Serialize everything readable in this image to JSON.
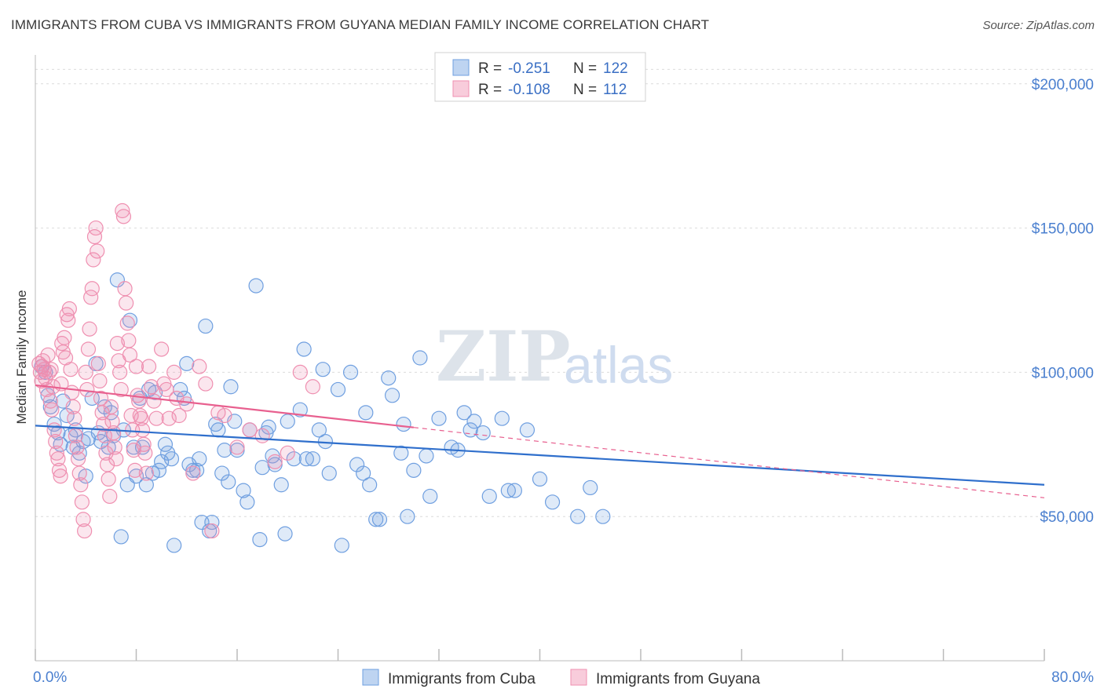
{
  "title": "IMMIGRANTS FROM CUBA VS IMMIGRANTS FROM GUYANA MEDIAN FAMILY INCOME CORRELATION CHART",
  "source": "Source: ZipAtlas.com",
  "watermark": {
    "zip": "ZIP",
    "atlas": "atlas"
  },
  "chart_data": {
    "type": "scatter",
    "ylabel": "Median Family Income",
    "xlim": [
      0,
      80
    ],
    "ylim": [
      0,
      210000
    ],
    "x_tick_labels": [
      "0.0%",
      "80.0%"
    ],
    "x_tick_marks": [
      0,
      8,
      16,
      24,
      32,
      40,
      48,
      56,
      64,
      72,
      80
    ],
    "y_ticks": [
      {
        "value": 50000,
        "label": "$50,000"
      },
      {
        "value": 100000,
        "label": "$100,000"
      },
      {
        "value": 150000,
        "label": "$150,000"
      },
      {
        "value": 200000,
        "label": "$200,000"
      }
    ],
    "series": [
      {
        "name": "Immigrants from Cuba",
        "color": "#6f9fe0",
        "line_color": "#2f6fcc",
        "R": "-0.251",
        "N": "122",
        "trend": {
          "x0": 0,
          "y0": 81500,
          "x1": 80,
          "y1": 61000,
          "dashed_from": null
        },
        "points": [
          [
            0.5,
            102
          ],
          [
            0.8,
            100
          ],
          [
            1.0,
            92
          ],
          [
            1.2,
            88
          ],
          [
            1.5,
            82
          ],
          [
            1.8,
            79
          ],
          [
            2.0,
            75
          ],
          [
            2.2,
            90
          ],
          [
            2.5,
            85
          ],
          [
            2.8,
            78
          ],
          [
            3.0,
            74
          ],
          [
            3.2,
            80
          ],
          [
            3.5,
            72
          ],
          [
            3.8,
            76
          ],
          [
            4.0,
            64
          ],
          [
            4.2,
            77
          ],
          [
            4.5,
            91
          ],
          [
            4.8,
            103
          ],
          [
            5.0,
            79
          ],
          [
            5.2,
            76
          ],
          [
            5.5,
            88
          ],
          [
            5.8,
            74
          ],
          [
            6.0,
            86
          ],
          [
            6.2,
            78
          ],
          [
            6.5,
            132
          ],
          [
            6.8,
            43
          ],
          [
            7.0,
            80
          ],
          [
            7.3,
            61
          ],
          [
            7.5,
            118
          ],
          [
            7.8,
            74
          ],
          [
            8.0,
            64
          ],
          [
            8.3,
            91
          ],
          [
            8.5,
            74
          ],
          [
            8.8,
            61
          ],
          [
            9.0,
            94
          ],
          [
            9.3,
            65
          ],
          [
            9.5,
            93
          ],
          [
            9.8,
            66
          ],
          [
            10.0,
            69
          ],
          [
            10.3,
            75
          ],
          [
            10.5,
            72
          ],
          [
            10.8,
            70
          ],
          [
            11.0,
            40
          ],
          [
            11.5,
            94
          ],
          [
            11.8,
            91
          ],
          [
            12.0,
            103
          ],
          [
            12.2,
            68
          ],
          [
            12.5,
            66
          ],
          [
            12.8,
            66
          ],
          [
            13.0,
            70
          ],
          [
            13.2,
            48
          ],
          [
            13.5,
            116
          ],
          [
            13.8,
            45
          ],
          [
            14.0,
            48
          ],
          [
            14.3,
            82
          ],
          [
            14.5,
            80
          ],
          [
            14.8,
            65
          ],
          [
            15.0,
            73
          ],
          [
            15.3,
            62
          ],
          [
            15.5,
            95
          ],
          [
            15.8,
            83
          ],
          [
            16.0,
            73
          ],
          [
            16.5,
            59
          ],
          [
            16.8,
            55
          ],
          [
            17.0,
            80
          ],
          [
            17.5,
            130
          ],
          [
            17.8,
            42
          ],
          [
            18.0,
            67
          ],
          [
            18.3,
            79
          ],
          [
            18.5,
            81
          ],
          [
            18.8,
            71
          ],
          [
            19.0,
            68
          ],
          [
            19.5,
            61
          ],
          [
            19.8,
            44
          ],
          [
            20.0,
            83
          ],
          [
            20.5,
            70
          ],
          [
            21.0,
            87
          ],
          [
            21.3,
            108
          ],
          [
            21.5,
            70
          ],
          [
            22.0,
            70
          ],
          [
            22.5,
            80
          ],
          [
            22.8,
            101
          ],
          [
            23.0,
            76
          ],
          [
            23.3,
            65
          ],
          [
            24.0,
            94
          ],
          [
            24.3,
            40
          ],
          [
            25.0,
            100
          ],
          [
            25.5,
            68
          ],
          [
            26.0,
            65
          ],
          [
            26.2,
            86
          ],
          [
            26.5,
            61
          ],
          [
            27.0,
            49
          ],
          [
            27.3,
            49
          ],
          [
            28.0,
            98
          ],
          [
            28.3,
            92
          ],
          [
            29.0,
            72
          ],
          [
            29.2,
            82
          ],
          [
            29.5,
            50
          ],
          [
            30.0,
            66
          ],
          [
            30.5,
            105
          ],
          [
            31.0,
            71
          ],
          [
            31.3,
            57
          ],
          [
            32.0,
            84
          ],
          [
            33.0,
            74
          ],
          [
            33.5,
            73
          ],
          [
            34.0,
            86
          ],
          [
            34.5,
            80
          ],
          [
            34.8,
            83
          ],
          [
            35.5,
            79
          ],
          [
            36.0,
            57
          ],
          [
            37.0,
            84
          ],
          [
            37.5,
            59
          ],
          [
            38.0,
            59
          ],
          [
            39.0,
            80
          ],
          [
            40.0,
            63
          ],
          [
            41.0,
            55
          ],
          [
            43.0,
            50
          ],
          [
            44.0,
            60
          ],
          [
            45.0,
            50
          ]
        ]
      },
      {
        "name": "Immigrants from Guyana",
        "color": "#ef8fb0",
        "line_color": "#e8608f",
        "R": "-0.108",
        "N": "112",
        "trend": {
          "x0": 0,
          "y0": 95500,
          "x1": 80,
          "y1": 56500,
          "dashed_from": 30
        },
        "points": [
          [
            0.3,
            103
          ],
          [
            0.4,
            100
          ],
          [
            0.5,
            97
          ],
          [
            0.6,
            104
          ],
          [
            0.7,
            101
          ],
          [
            0.8,
            98
          ],
          [
            0.9,
            94
          ],
          [
            1.0,
            106
          ],
          [
            1.1,
            100
          ],
          [
            1.2,
            90
          ],
          [
            1.3,
            87
          ],
          [
            1.4,
            95
          ],
          [
            1.5,
            80
          ],
          [
            1.6,
            76
          ],
          [
            1.7,
            72
          ],
          [
            1.8,
            70
          ],
          [
            1.9,
            66
          ],
          [
            2.0,
            64
          ],
          [
            2.1,
            110
          ],
          [
            2.2,
            107
          ],
          [
            2.3,
            112
          ],
          [
            2.4,
            105
          ],
          [
            2.5,
            120
          ],
          [
            2.6,
            118
          ],
          [
            2.7,
            122
          ],
          [
            2.8,
            101
          ],
          [
            2.9,
            93
          ],
          [
            3.0,
            88
          ],
          [
            3.1,
            84
          ],
          [
            3.2,
            78
          ],
          [
            3.3,
            74
          ],
          [
            3.4,
            70
          ],
          [
            3.5,
            65
          ],
          [
            3.6,
            61
          ],
          [
            3.7,
            55
          ],
          [
            3.8,
            49
          ],
          [
            3.9,
            45
          ],
          [
            4.0,
            100
          ],
          [
            4.1,
            94
          ],
          [
            4.2,
            108
          ],
          [
            4.3,
            115
          ],
          [
            4.4,
            126
          ],
          [
            4.5,
            129
          ],
          [
            4.6,
            139
          ],
          [
            4.7,
            147
          ],
          [
            4.8,
            150
          ],
          [
            4.9,
            142
          ],
          [
            5.0,
            103
          ],
          [
            5.1,
            97
          ],
          [
            5.2,
            91
          ],
          [
            5.3,
            86
          ],
          [
            5.4,
            82
          ],
          [
            5.5,
            78
          ],
          [
            5.6,
            72
          ],
          [
            5.7,
            68
          ],
          [
            5.8,
            63
          ],
          [
            5.9,
            57
          ],
          [
            6.0,
            88
          ],
          [
            6.1,
            83
          ],
          [
            6.2,
            79
          ],
          [
            6.3,
            74
          ],
          [
            6.4,
            70
          ],
          [
            6.5,
            110
          ],
          [
            6.6,
            104
          ],
          [
            6.7,
            100
          ],
          [
            6.8,
            94
          ],
          [
            6.9,
            156
          ],
          [
            7.0,
            154
          ],
          [
            7.1,
            129
          ],
          [
            7.2,
            124
          ],
          [
            7.3,
            117
          ],
          [
            7.4,
            111
          ],
          [
            7.5,
            106
          ],
          [
            7.6,
            85
          ],
          [
            7.7,
            80
          ],
          [
            7.8,
            73
          ],
          [
            7.9,
            66
          ],
          [
            8.0,
            102
          ],
          [
            8.1,
            92
          ],
          [
            8.2,
            90
          ],
          [
            8.3,
            85
          ],
          [
            8.4,
            84
          ],
          [
            8.5,
            80
          ],
          [
            8.6,
            75
          ],
          [
            8.7,
            72
          ],
          [
            8.8,
            65
          ],
          [
            9.0,
            102
          ],
          [
            9.2,
            95
          ],
          [
            9.4,
            90
          ],
          [
            9.6,
            84
          ],
          [
            10.0,
            108
          ],
          [
            10.2,
            96
          ],
          [
            10.4,
            94
          ],
          [
            10.6,
            84
          ],
          [
            11.0,
            100
          ],
          [
            11.2,
            91
          ],
          [
            11.4,
            85
          ],
          [
            12.0,
            89
          ],
          [
            12.5,
            65
          ],
          [
            13.0,
            102
          ],
          [
            13.5,
            96
          ],
          [
            14.0,
            45
          ],
          [
            14.5,
            86
          ],
          [
            15.0,
            85
          ],
          [
            16.0,
            74
          ],
          [
            17.0,
            80
          ],
          [
            18.0,
            78
          ],
          [
            19.0,
            69
          ],
          [
            20.0,
            72
          ],
          [
            21.0,
            100
          ],
          [
            22.0,
            95
          ],
          [
            2.05,
            96
          ],
          [
            0.55,
            102
          ],
          [
            1.25,
            101
          ]
        ]
      }
    ]
  },
  "legend": {
    "r_label": "R =",
    "n_label": "N =",
    "bottom_items": [
      "Immigrants from Cuba",
      "Immigrants from Guyana"
    ]
  }
}
